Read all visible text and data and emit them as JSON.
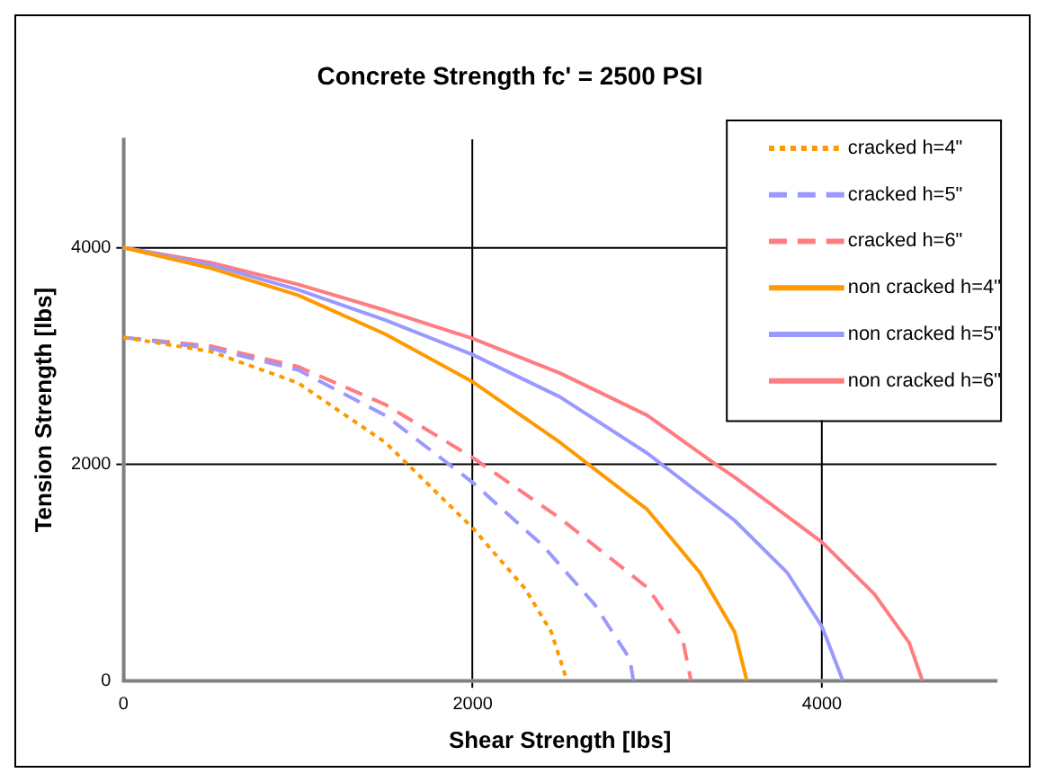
{
  "chart_data": {
    "type": "line",
    "title": "Concrete Strength fc' = 2500 PSI",
    "xlabel": "Shear Strength [lbs]",
    "ylabel": "Tension Strength [lbs]",
    "xlim": [
      0,
      5000
    ],
    "xticks": [
      0,
      2000,
      4000
    ],
    "ylim": [
      0,
      5000
    ],
    "yticks": [
      0,
      2000,
      4000
    ],
    "grid": true,
    "legend": "top right",
    "marker": "none",
    "series": [
      {
        "name": "cracked h=4\"",
        "color": "#ff9900",
        "line_style": "dotted",
        "x": [
          0,
          500,
          1000,
          1500,
          2000,
          2300,
          2450,
          2540
        ],
        "values": [
          3170,
          3040,
          2750,
          2200,
          1410,
          850,
          450,
          0
        ]
      },
      {
        "name": "cracked h=5\"",
        "color": "#9999ff",
        "line_style": "dashed",
        "x": [
          0,
          500,
          1000,
          1500,
          2000,
          2400,
          2700,
          2900,
          2920
        ],
        "values": [
          3170,
          3070,
          2870,
          2450,
          1830,
          1250,
          700,
          200,
          0
        ]
      },
      {
        "name": "cracked h=6\"",
        "color": "#ff7c80",
        "line_style": "dashed",
        "x": [
          0,
          500,
          1000,
          1500,
          2000,
          2500,
          3000,
          3200,
          3250
        ],
        "values": [
          3170,
          3090,
          2900,
          2550,
          2060,
          1500,
          860,
          400,
          0
        ]
      },
      {
        "name": "non cracked h=4\"",
        "color": "#ff9900",
        "line_style": "solid",
        "x": [
          0,
          500,
          1000,
          1500,
          2000,
          2500,
          3000,
          3300,
          3500,
          3570
        ],
        "values": [
          4000,
          3810,
          3560,
          3200,
          2760,
          2200,
          1580,
          1000,
          450,
          0
        ]
      },
      {
        "name": "non cracked h=5\"",
        "color": "#9999ff",
        "line_style": "solid",
        "x": [
          0,
          500,
          1000,
          1500,
          2000,
          2500,
          3000,
          3500,
          3800,
          4000,
          4120
        ],
        "values": [
          4000,
          3840,
          3610,
          3330,
          3010,
          2620,
          2100,
          1480,
          1000,
          500,
          0
        ]
      },
      {
        "name": "non cracked h=6\"",
        "color": "#ff7c80",
        "line_style": "solid",
        "x": [
          0,
          500,
          1000,
          1500,
          2000,
          2500,
          3000,
          3390,
          3500,
          4000,
          4300,
          4500,
          4575
        ],
        "values": [
          4000,
          3860,
          3660,
          3420,
          3160,
          2840,
          2450,
          2000,
          1880,
          1280,
          800,
          350,
          0
        ]
      }
    ]
  }
}
